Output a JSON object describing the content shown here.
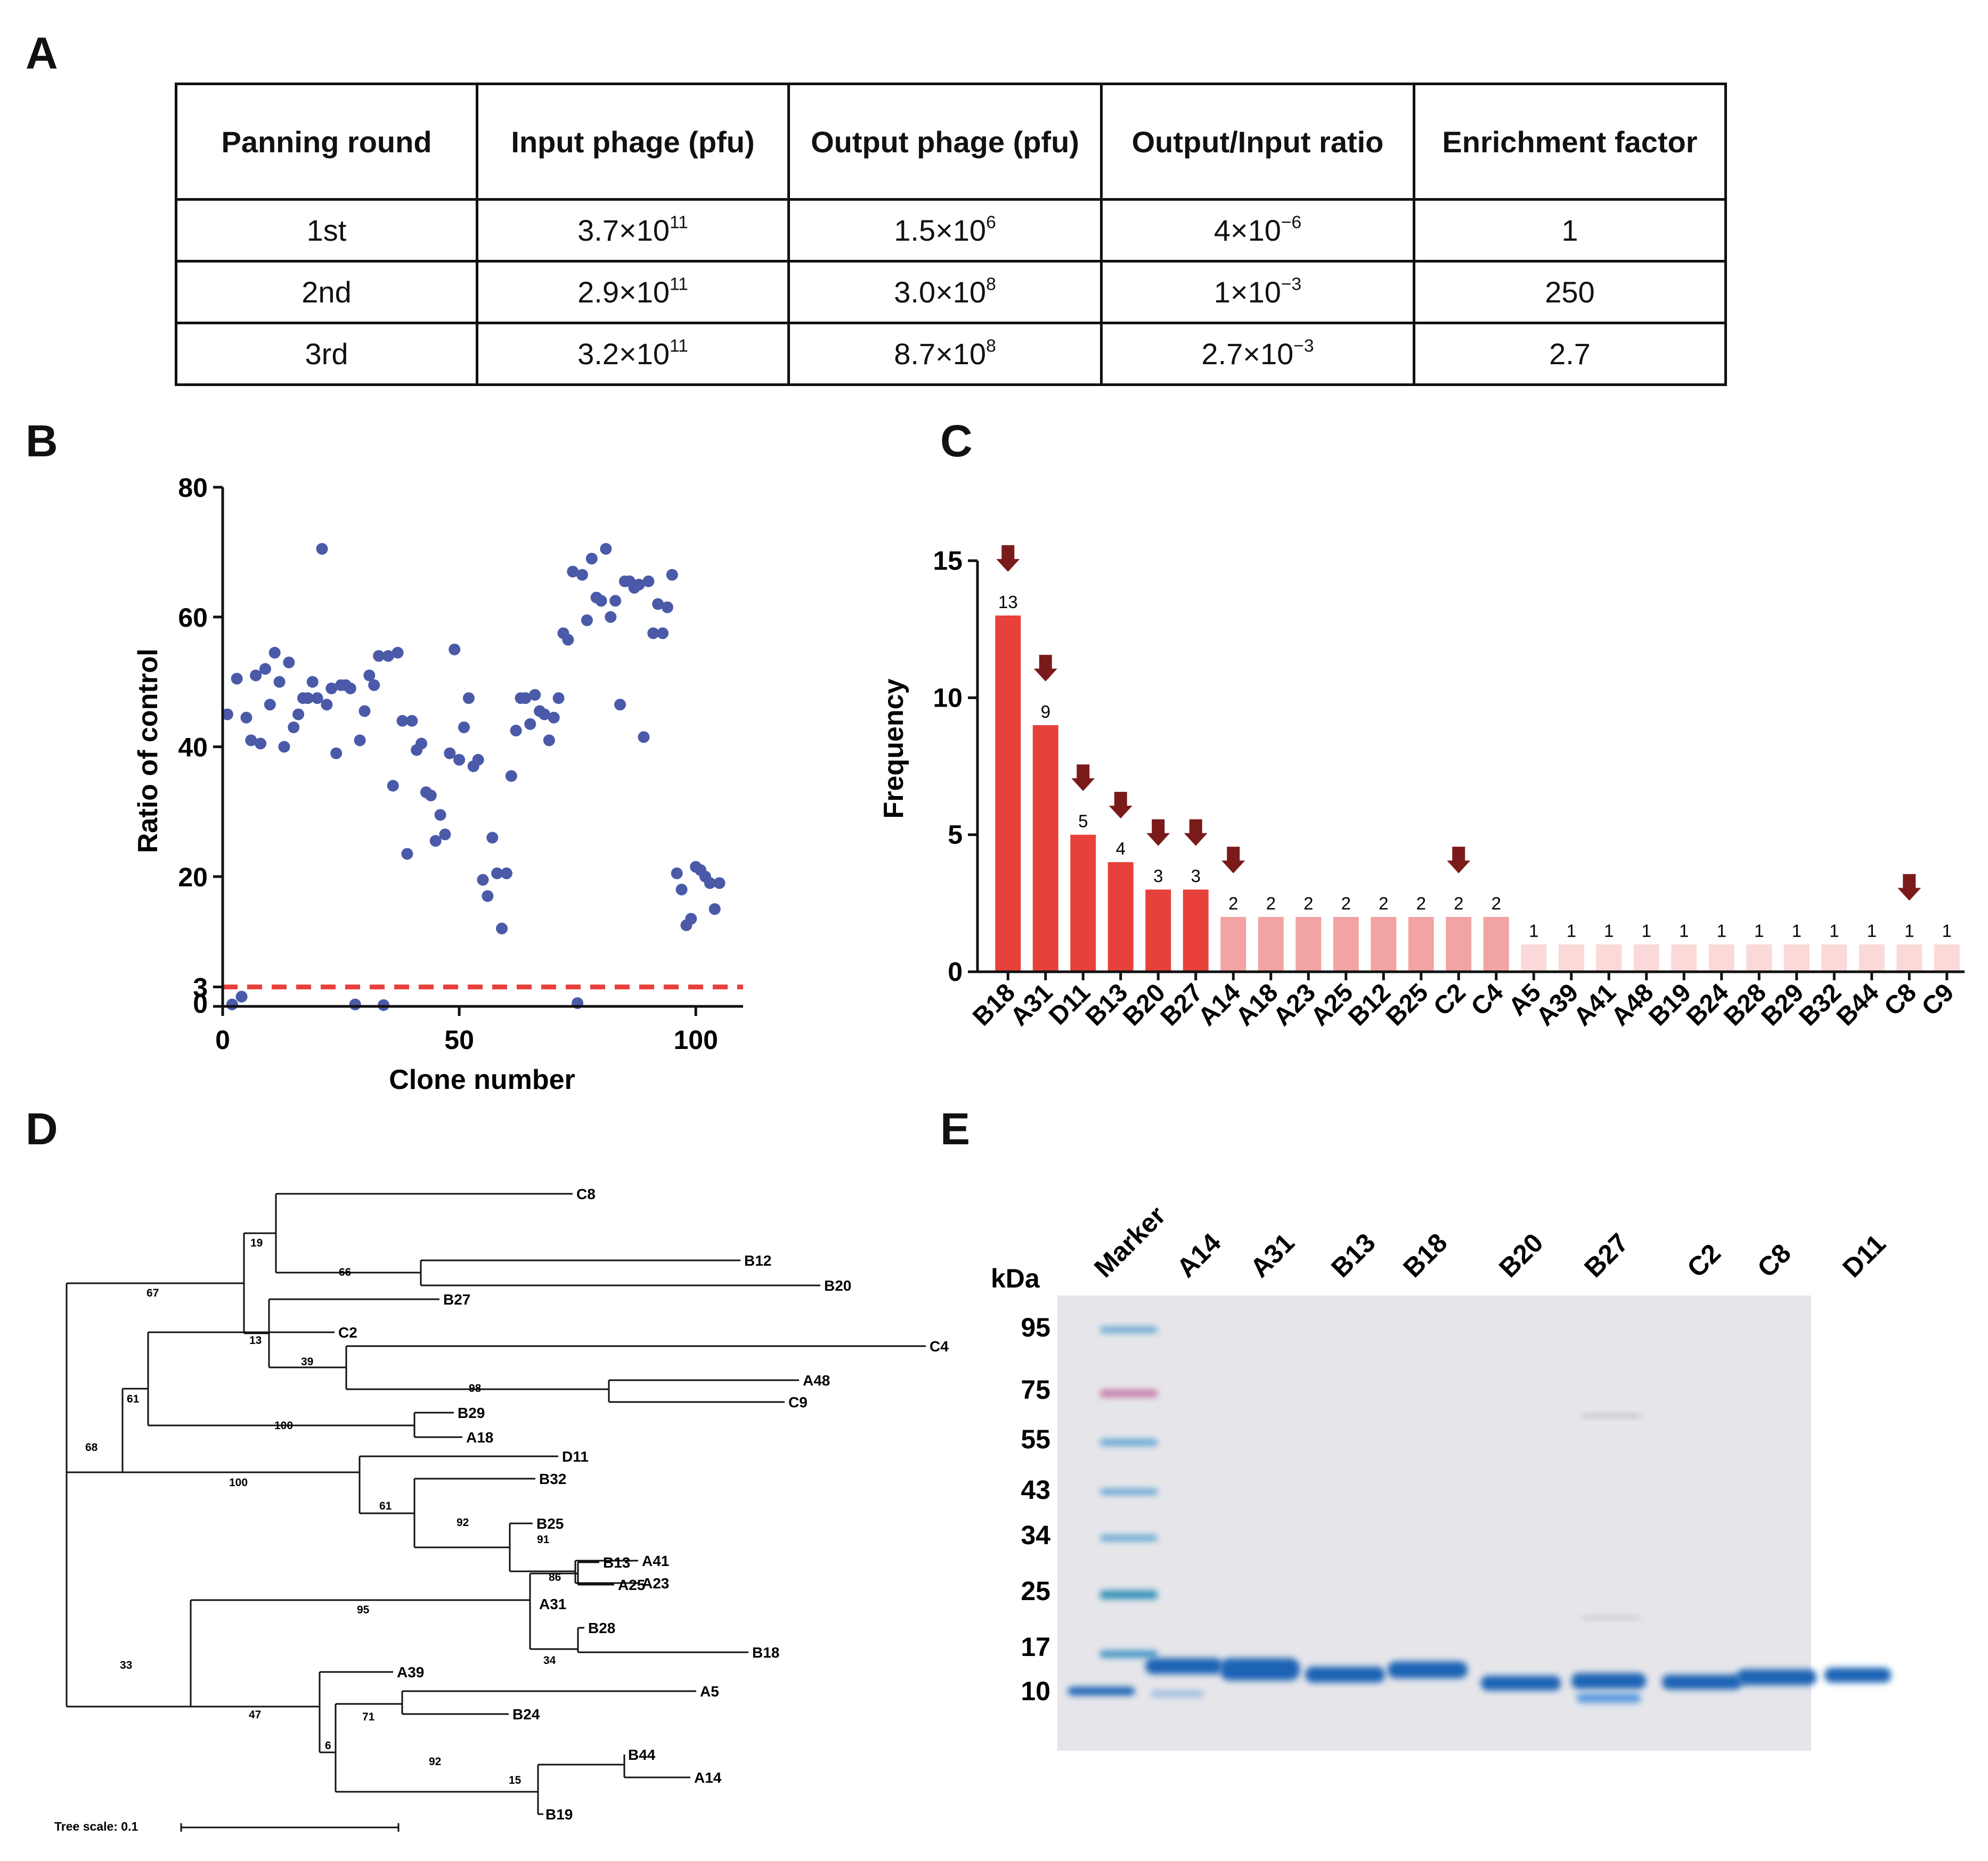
{
  "panels": {
    "a": "A",
    "b": "B",
    "c": "C",
    "d": "D",
    "e": "E"
  },
  "table": {
    "headers": [
      "Panning round",
      "Input phage (pfu)",
      "Output phage (pfu)",
      "Output/Input ratio",
      "Enrichment factor"
    ],
    "rows": [
      {
        "round": "1st",
        "input_base": "3.7×10",
        "input_exp": "11",
        "output_base": "1.5×10",
        "output_exp": "6",
        "ratio_base": "4×10",
        "ratio_exp": "−6",
        "enrichment": "1"
      },
      {
        "round": "2nd",
        "input_base": "2.9×10",
        "input_exp": "11",
        "output_base": "3.0×10",
        "output_exp": "8",
        "ratio_base": "1×10",
        "ratio_exp": "−3",
        "enrichment": "250"
      },
      {
        "round": "3rd",
        "input_base": "3.2×10",
        "input_exp": "11",
        "output_base": "8.7×10",
        "output_exp": "8",
        "ratio_base": "2.7×10",
        "ratio_exp": "−3",
        "enrichment": "2.7"
      }
    ]
  },
  "chart_data": [
    {
      "type": "scatter",
      "xlabel": "Clone number",
      "ylabel": "Ratio of control",
      "xlim": [
        0,
        110
      ],
      "ylim": [
        0,
        80
      ],
      "x_ticks": [
        "0",
        "50",
        "100"
      ],
      "y_ticks": [
        "0",
        "3",
        "20",
        "40",
        "60",
        "80"
      ],
      "threshold": 3,
      "point_color": "#4a5aa8",
      "threshold_color": "#e8403a",
      "points": [
        [
          1,
          45
        ],
        [
          2,
          0.3
        ],
        [
          3,
          50.5
        ],
        [
          4,
          1.5
        ],
        [
          5,
          44.5
        ],
        [
          6,
          41
        ],
        [
          7,
          51
        ],
        [
          8,
          40.5
        ],
        [
          9,
          52
        ],
        [
          10,
          46.5
        ],
        [
          11,
          54.5
        ],
        [
          12,
          50
        ],
        [
          13,
          40
        ],
        [
          14,
          53
        ],
        [
          15,
          43
        ],
        [
          16,
          45
        ],
        [
          17,
          47.5
        ],
        [
          18,
          47.5
        ],
        [
          19,
          50
        ],
        [
          20,
          47.5
        ],
        [
          21,
          70.5
        ],
        [
          22,
          46.5
        ],
        [
          23,
          49
        ],
        [
          24,
          39
        ],
        [
          25,
          49.5
        ],
        [
          26,
          49.5
        ],
        [
          27,
          49
        ],
        [
          28,
          0.3
        ],
        [
          29,
          41
        ],
        [
          30,
          45.5
        ],
        [
          31,
          51
        ],
        [
          32,
          49.5
        ],
        [
          33,
          54
        ],
        [
          34,
          0.2
        ],
        [
          35,
          54
        ],
        [
          36,
          34
        ],
        [
          37,
          54.5
        ],
        [
          38,
          44
        ],
        [
          39,
          23.5
        ],
        [
          40,
          44
        ],
        [
          41,
          39.5
        ],
        [
          42,
          40.5
        ],
        [
          43,
          33
        ],
        [
          44,
          32.5
        ],
        [
          45,
          25.5
        ],
        [
          46,
          29.5
        ],
        [
          47,
          26.5
        ],
        [
          48,
          39
        ],
        [
          49,
          55
        ],
        [
          50,
          38
        ],
        [
          51,
          43
        ],
        [
          52,
          47.5
        ],
        [
          53,
          37
        ],
        [
          54,
          38
        ],
        [
          55,
          19.5
        ],
        [
          56,
          17
        ],
        [
          57,
          26
        ],
        [
          58,
          20.5
        ],
        [
          59,
          12
        ],
        [
          60,
          20.5
        ],
        [
          61,
          35.5
        ],
        [
          62,
          42.5
        ],
        [
          63,
          47.5
        ],
        [
          64,
          47.5
        ],
        [
          65,
          43.5
        ],
        [
          66,
          48
        ],
        [
          67,
          45.5
        ],
        [
          68,
          45
        ],
        [
          69,
          41
        ],
        [
          70,
          44.5
        ],
        [
          71,
          47.5
        ],
        [
          72,
          57.5
        ],
        [
          73,
          56.5
        ],
        [
          74,
          67
        ],
        [
          75,
          0.5
        ],
        [
          76,
          66.5
        ],
        [
          77,
          59.5
        ],
        [
          78,
          69
        ],
        [
          79,
          63
        ],
        [
          80,
          62.5
        ],
        [
          81,
          70.5
        ],
        [
          82,
          60
        ],
        [
          83,
          62.5
        ],
        [
          84,
          46.5
        ],
        [
          85,
          65.5
        ],
        [
          86,
          65.5
        ],
        [
          87,
          64.5
        ],
        [
          88,
          65
        ],
        [
          89,
          41.5
        ],
        [
          90,
          65.5
        ],
        [
          91,
          57.5
        ],
        [
          92,
          62
        ],
        [
          93,
          57.5
        ],
        [
          94,
          61.5
        ],
        [
          95,
          66.5
        ],
        [
          96,
          20.5
        ],
        [
          97,
          18
        ],
        [
          98,
          12.5
        ],
        [
          99,
          13.5
        ],
        [
          100,
          21.5
        ],
        [
          101,
          21
        ],
        [
          102,
          20
        ],
        [
          103,
          19
        ],
        [
          104,
          15
        ],
        [
          105,
          19
        ]
      ]
    },
    {
      "type": "bar",
      "ylabel": "Frequency",
      "ylim": [
        0,
        15
      ],
      "y_ticks": [
        "0",
        "5",
        "10",
        "15"
      ],
      "categories": [
        "B18",
        "A31",
        "D11",
        "B13",
        "B20",
        "B27",
        "A14",
        "A18",
        "A23",
        "A25",
        "B12",
        "B25",
        "C2",
        "C4",
        "A5",
        "A39",
        "A41",
        "A48",
        "B19",
        "B24",
        "B28",
        "B29",
        "B32",
        "B44",
        "C8",
        "C9"
      ],
      "values": [
        13,
        9,
        5,
        4,
        3,
        3,
        2,
        2,
        2,
        2,
        2,
        2,
        2,
        2,
        1,
        1,
        1,
        1,
        1,
        1,
        1,
        1,
        1,
        1,
        1,
        1
      ],
      "data_labels": [
        "13",
        "9",
        "5",
        "4",
        "3",
        "3",
        "2",
        "2",
        "2",
        "2",
        "2",
        "2",
        "2",
        "2",
        "1",
        "1",
        "1",
        "1",
        "1",
        "1",
        "1",
        "1",
        "1",
        "1",
        "1",
        "1"
      ],
      "highlighted": [
        "B18",
        "A31",
        "D11",
        "B13",
        "B20",
        "B27",
        "A14",
        "C2",
        "C8"
      ],
      "colors": {
        "high": "#e8403a",
        "mid": "#f2a3a3",
        "low": "#fbd9d9",
        "arrow": "#7b1a1a"
      }
    }
  ],
  "tree": {
    "leaves": [
      "C8",
      "B12",
      "B20",
      "B27",
      "C4",
      "A48",
      "C9",
      "C2",
      "B29",
      "A18",
      "D11",
      "B32",
      "B25",
      "A41",
      "A23",
      "B13",
      "A25",
      "A31",
      "B28",
      "B18",
      "A39",
      "A5",
      "B24",
      "B44",
      "A14",
      "B19"
    ],
    "bootstrap": [
      "19",
      "66",
      "67",
      "13",
      "39",
      "98",
      "61",
      "100",
      "68",
      "100",
      "61",
      "92",
      "91",
      "86",
      "95",
      "34",
      "33",
      "47",
      "71",
      "6",
      "92",
      "15"
    ],
    "scale_label": "Tree scale: 0.1"
  },
  "gel": {
    "unit": "kDa",
    "marker_label": "Marker",
    "lanes": [
      "A14",
      "A31",
      "B13",
      "B18",
      "B20",
      "B27",
      "C2",
      "C8",
      "D11"
    ],
    "marker_kda": [
      "95",
      "75",
      "55",
      "43",
      "34",
      "25",
      "17",
      "10"
    ],
    "colors": {
      "background": "#e6e6ea",
      "band": "#1f63b5",
      "marker": "#5ba2d0",
      "marker_pink": "#c37aa6"
    }
  }
}
